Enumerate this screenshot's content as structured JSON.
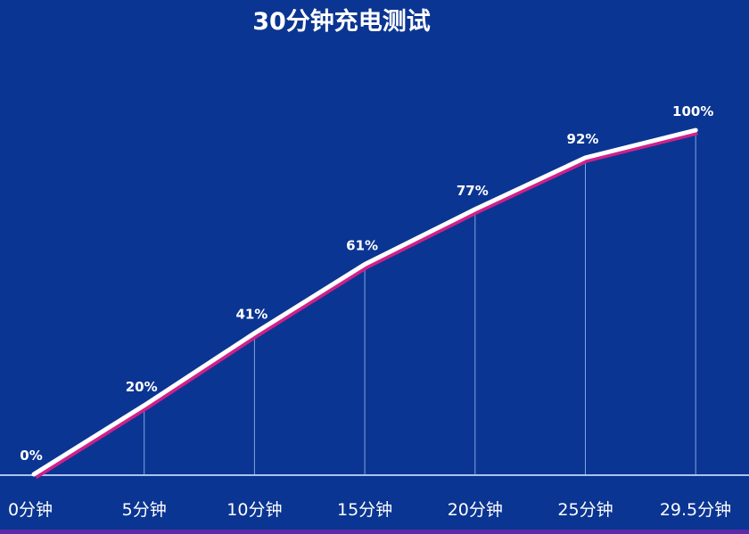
{
  "chart_data": {
    "type": "line",
    "title": "30分钟充电测试",
    "categories": [
      "0分钟",
      "5分钟",
      "10分钟",
      "15分钟",
      "20分钟",
      "25分钟",
      "29.5分钟"
    ],
    "series": [
      {
        "values": [
          0,
          20,
          41,
          61,
          77,
          92,
          100
        ]
      }
    ],
    "data_labels": [
      "0%",
      "20%",
      "41%",
      "61%",
      "77%",
      "92%",
      "100%"
    ],
    "xlabel": "",
    "ylabel": "",
    "ylim": [
      0,
      100
    ],
    "grid": false,
    "legend": "none",
    "colors": {
      "background": "#0b3592",
      "line": "#ffffff",
      "line_shadow": "#d0208a",
      "axis": "#a9c4ee",
      "drop_lines": "#7fa6e0"
    }
  }
}
